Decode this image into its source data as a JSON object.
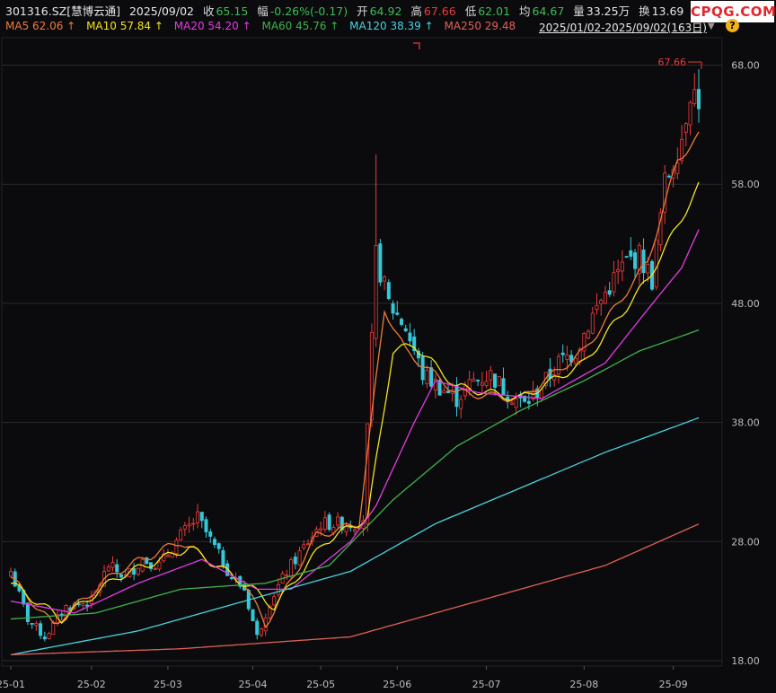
{
  "header": {
    "symbol": "301316.SZ[慧博云通]",
    "date": "2025/09/02",
    "close_label": "收",
    "close_value": "65.15",
    "change_label": "幅",
    "change_value": "-0.26%(-0.17)",
    "open_label": "开",
    "open_value": "64.92",
    "high_label": "高",
    "high_value": "67.66",
    "low_label": "低",
    "low_value": "62.01",
    "avg_label": "均",
    "avg_value": "64.67",
    "vol_label": "量",
    "vol_value": "33.25万",
    "turn_label": "换",
    "turn_value": "13.69"
  },
  "ma_legend": [
    {
      "text": "MA5 62.06 ↑",
      "color": "#f07b3a"
    },
    {
      "text": "MA10 57.84 ↑",
      "color": "#f2e41c"
    },
    {
      "text": "MA20 54.20 ↑",
      "color": "#e23ce0"
    },
    {
      "text": "MA60 45.76 ↑",
      "color": "#3fb24d"
    },
    {
      "text": "MA120 38.39 ↑",
      "color": "#48d2df"
    },
    {
      "text": "MA250 29.48",
      "color": "#e0605a"
    }
  ],
  "range_text": "2025/01/02-2025/09/02(163日)",
  "question_icon": "?",
  "watermark": "CPQG.COM",
  "colors": {
    "up": "#ec3b3b",
    "down": "#35c8d8",
    "grid": "#2a2a2e",
    "axis": "#bdbdbd"
  },
  "chart_data": {
    "type": "candlestick",
    "ylim": [
      18,
      70
    ],
    "y_ticks": [
      "68.00",
      "58.00",
      "48.00",
      "38.00",
      "28.00",
      "18.00"
    ],
    "y_tick_values": [
      68,
      58,
      48,
      38,
      28,
      18
    ],
    "x_ticks": [
      "25-01",
      "25-02",
      "25-03",
      "25-04",
      "25-05",
      "25-06",
      "25-07",
      "25-08",
      "25-09"
    ],
    "x_tick_index": [
      0,
      19,
      37,
      57,
      73,
      91,
      112,
      135,
      156
    ],
    "n_bars": 163,
    "high_marker": "67.66",
    "ohlc_keypoints": [
      [
        0,
        25.5
      ],
      [
        4,
        21.5
      ],
      [
        8,
        20.0
      ],
      [
        13,
        22.5
      ],
      [
        19,
        23.0
      ],
      [
        23,
        26.0
      ],
      [
        27,
        25.0
      ],
      [
        31,
        26.5
      ],
      [
        35,
        26.0
      ],
      [
        40,
        28.5
      ],
      [
        44,
        30.0
      ],
      [
        48,
        27.5
      ],
      [
        52,
        25.0
      ],
      [
        55,
        24.0
      ],
      [
        58,
        20.0
      ],
      [
        61,
        23.0
      ],
      [
        65,
        25.5
      ],
      [
        70,
        28.0
      ],
      [
        73,
        29.5
      ],
      [
        77,
        29.5
      ],
      [
        81,
        29.5
      ],
      [
        83,
        30.0
      ],
      [
        86,
        52.0
      ],
      [
        89,
        48.0
      ],
      [
        93,
        46.0
      ],
      [
        97,
        42.0
      ],
      [
        101,
        41.0
      ],
      [
        105,
        40.0
      ],
      [
        109,
        41.5
      ],
      [
        113,
        42.0
      ],
      [
        117,
        40.5
      ],
      [
        121,
        39.5
      ],
      [
        125,
        41.0
      ],
      [
        129,
        43.0
      ],
      [
        133,
        44.0
      ],
      [
        137,
        47.0
      ],
      [
        141,
        49.5
      ],
      [
        145,
        51.5
      ],
      [
        148,
        52.0
      ],
      [
        151,
        50.0
      ],
      [
        154,
        58.0
      ],
      [
        158,
        62.0
      ],
      [
        160,
        66.0
      ],
      [
        162,
        65.15
      ]
    ],
    "ma_keypoints": {
      "MA5": [
        [
          0,
          25.0
        ],
        [
          10,
          21.0
        ],
        [
          25,
          25.5
        ],
        [
          40,
          28.0
        ],
        [
          55,
          24.5
        ],
        [
          60,
          21.0
        ],
        [
          72,
          28.5
        ],
        [
          82,
          29.5
        ],
        [
          88,
          47.5
        ],
        [
          93,
          44.0
        ],
        [
          105,
          40.5
        ],
        [
          120,
          40.0
        ],
        [
          135,
          44.0
        ],
        [
          150,
          51.5
        ],
        [
          157,
          60.0
        ],
        [
          162,
          62.06
        ]
      ],
      "MA10": [
        [
          0,
          24.5
        ],
        [
          12,
          21.5
        ],
        [
          25,
          25.0
        ],
        [
          42,
          27.5
        ],
        [
          57,
          24.0
        ],
        [
          62,
          22.5
        ],
        [
          74,
          28.0
        ],
        [
          84,
          30.0
        ],
        [
          90,
          44.0
        ],
        [
          95,
          44.5
        ],
        [
          105,
          41.0
        ],
        [
          120,
          40.0
        ],
        [
          135,
          43.0
        ],
        [
          150,
          50.0
        ],
        [
          157,
          54.5
        ],
        [
          162,
          57.84
        ]
      ],
      "MA20": [
        [
          0,
          23.0
        ],
        [
          15,
          22.0
        ],
        [
          30,
          24.5
        ],
        [
          45,
          26.5
        ],
        [
          58,
          24.0
        ],
        [
          66,
          24.0
        ],
        [
          80,
          28.0
        ],
        [
          86,
          31.0
        ],
        [
          95,
          38.0
        ],
        [
          100,
          41.5
        ],
        [
          110,
          40.5
        ],
        [
          125,
          40.0
        ],
        [
          140,
          43.0
        ],
        [
          150,
          47.5
        ],
        [
          158,
          51.0
        ],
        [
          162,
          54.2
        ]
      ],
      "MA60": [
        [
          0,
          21.5
        ],
        [
          20,
          22.0
        ],
        [
          40,
          24.0
        ],
        [
          60,
          24.5
        ],
        [
          75,
          26.0
        ],
        [
          90,
          31.5
        ],
        [
          105,
          36.0
        ],
        [
          120,
          39.0
        ],
        [
          135,
          41.5
        ],
        [
          148,
          44.0
        ],
        [
          162,
          45.76
        ]
      ],
      "MA120": [
        [
          0,
          18.5
        ],
        [
          30,
          20.5
        ],
        [
          60,
          23.5
        ],
        [
          80,
          25.5
        ],
        [
          100,
          29.5
        ],
        [
          120,
          32.5
        ],
        [
          140,
          35.5
        ],
        [
          162,
          38.39
        ]
      ],
      "MA250": [
        [
          0,
          18.5
        ],
        [
          40,
          19.0
        ],
        [
          80,
          20.0
        ],
        [
          100,
          22.0
        ],
        [
          120,
          24.0
        ],
        [
          140,
          26.0
        ],
        [
          162,
          29.48
        ]
      ]
    }
  }
}
